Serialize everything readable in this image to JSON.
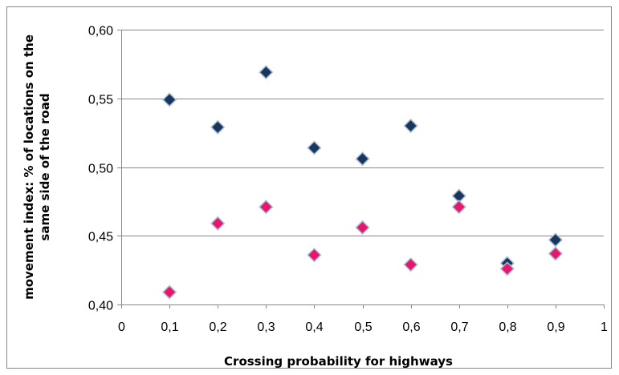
{
  "chart_data": {
    "type": "scatter",
    "title": "",
    "xlabel": "Crossing probability for highways",
    "ylabel": "movement index: % of locations on the same side of the road",
    "ylabel_lines": [
      "movement index: % of locations on the",
      "same side of the road"
    ],
    "xlim": [
      0,
      1
    ],
    "ylim": [
      0.4,
      0.6
    ],
    "xticks": [
      0,
      0.1,
      0.2,
      0.3,
      0.4,
      0.5,
      0.6,
      0.7,
      0.8,
      0.9,
      1
    ],
    "xtick_labels": [
      "0",
      "0,1",
      "0,2",
      "0,3",
      "0,4",
      "0,5",
      "0,6",
      "0,7",
      "0,8",
      "0,9",
      "1"
    ],
    "yticks": [
      0.4,
      0.45,
      0.5,
      0.55,
      0.6
    ],
    "ytick_labels": [
      "0,40",
      "0,45",
      "0,50",
      "0,55",
      "0,60"
    ],
    "grid": true,
    "legend": "none",
    "series": [
      {
        "color": "#17375E",
        "marker": "diamond",
        "points": [
          {
            "x": 0.1,
            "y": 0.549
          },
          {
            "x": 0.2,
            "y": 0.529
          },
          {
            "x": 0.3,
            "y": 0.569
          },
          {
            "x": 0.4,
            "y": 0.514
          },
          {
            "x": 0.5,
            "y": 0.506
          },
          {
            "x": 0.6,
            "y": 0.53
          },
          {
            "x": 0.7,
            "y": 0.479
          },
          {
            "x": 0.8,
            "y": 0.43
          },
          {
            "x": 0.9,
            "y": 0.447
          }
        ]
      },
      {
        "color": "#E8176B",
        "marker": "diamond",
        "points": [
          {
            "x": 0.1,
            "y": 0.409
          },
          {
            "x": 0.2,
            "y": 0.459
          },
          {
            "x": 0.3,
            "y": 0.471
          },
          {
            "x": 0.4,
            "y": 0.436
          },
          {
            "x": 0.5,
            "y": 0.456
          },
          {
            "x": 0.6,
            "y": 0.429
          },
          {
            "x": 0.7,
            "y": 0.471
          },
          {
            "x": 0.8,
            "y": 0.426
          },
          {
            "x": 0.9,
            "y": 0.437
          }
        ]
      }
    ]
  }
}
